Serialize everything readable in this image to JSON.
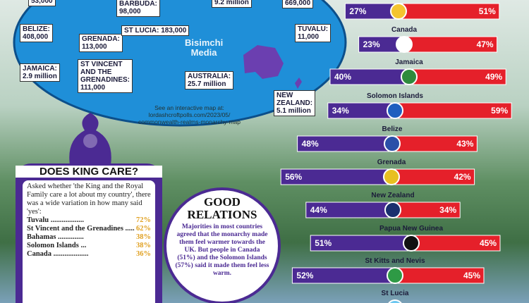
{
  "map": {
    "labels": [
      {
        "lines": [
          "53,000"
        ]
      },
      {
        "lines": [
          "BARBUDA:",
          "98,000"
        ]
      },
      {
        "lines": [
          "9.2 million"
        ]
      },
      {
        "lines": [
          "669,000"
        ]
      },
      {
        "lines": [
          "BELIZE:",
          "408,000"
        ]
      },
      {
        "lines": [
          "GRENADA:",
          "113,000"
        ]
      },
      {
        "lines": [
          "ST LUCIA: 183,000"
        ]
      },
      {
        "lines": [
          "TUVALU:",
          "11,000"
        ]
      },
      {
        "lines": [
          "JAMAICA:",
          "2.9 million"
        ]
      },
      {
        "lines": [
          "ST VINCENT",
          "AND THE",
          "GRENADINES:",
          "111,000"
        ]
      },
      {
        "lines": [
          "AUSTRALIA:",
          "25.7 million"
        ]
      },
      {
        "lines": [
          "NEW",
          "ZEALAND:",
          "5.1 million"
        ]
      }
    ],
    "watermark": [
      "Bisimchi",
      "Media"
    ],
    "note": [
      "See an interactive map at:",
      "lordashcroftpolls.com/2023/05/",
      "commonwealth-realms-monarchy-map"
    ]
  },
  "king_box": {
    "title": "DOES KING CARE?",
    "text": "Asked whether 'the King and the Royal Family care a lot about my country', there was a wide variation in how many said 'yes':",
    "items": [
      {
        "name": "Tuvalu ..................",
        "value": "72%"
      },
      {
        "name": "St Vincent and the Grenadines .....",
        "value": "62%"
      },
      {
        "name": "Bahamas ..............",
        "value": "38%"
      },
      {
        "name": "Solomon Islands ...",
        "value": "38%"
      },
      {
        "name": "Canada ...................",
        "value": "36%"
      }
    ]
  },
  "relations_box": {
    "title": [
      "GOOD",
      "RELATIONS"
    ],
    "text": "Majorities in most countries agreed that the monarchy made them feel warmer towards the UK. But people in Canada (51%) and the Solomon Islands (57%) said it made them feel less warm."
  },
  "chart_data": {
    "type": "bar",
    "orientation": "horizontal",
    "categories": [
      null,
      "Canada",
      "Jamaica",
      "Solomon Islands",
      "Belize",
      "Grenada",
      "New Zealand",
      "Papua New Guinea",
      "St Kitts and Nevis",
      "St Lucia"
    ],
    "series": [
      {
        "color": "#4b2a93",
        "values": [
          27,
          23,
          40,
          34,
          48,
          56,
          44,
          51,
          52,
          null
        ],
        "value_labels": [
          "27%",
          "23%",
          "40%",
          "34%",
          "48%",
          "56%",
          "44%",
          "51%",
          "52%",
          null
        ]
      },
      {
        "color": "#e5202a",
        "values": [
          51,
          47,
          49,
          59,
          43,
          42,
          34,
          45,
          45,
          null
        ],
        "value_labels": [
          "51%",
          "47%",
          "49%",
          "59%",
          "43%",
          "42%",
          "34%",
          "45%",
          "45%",
          null
        ]
      }
    ]
  }
}
